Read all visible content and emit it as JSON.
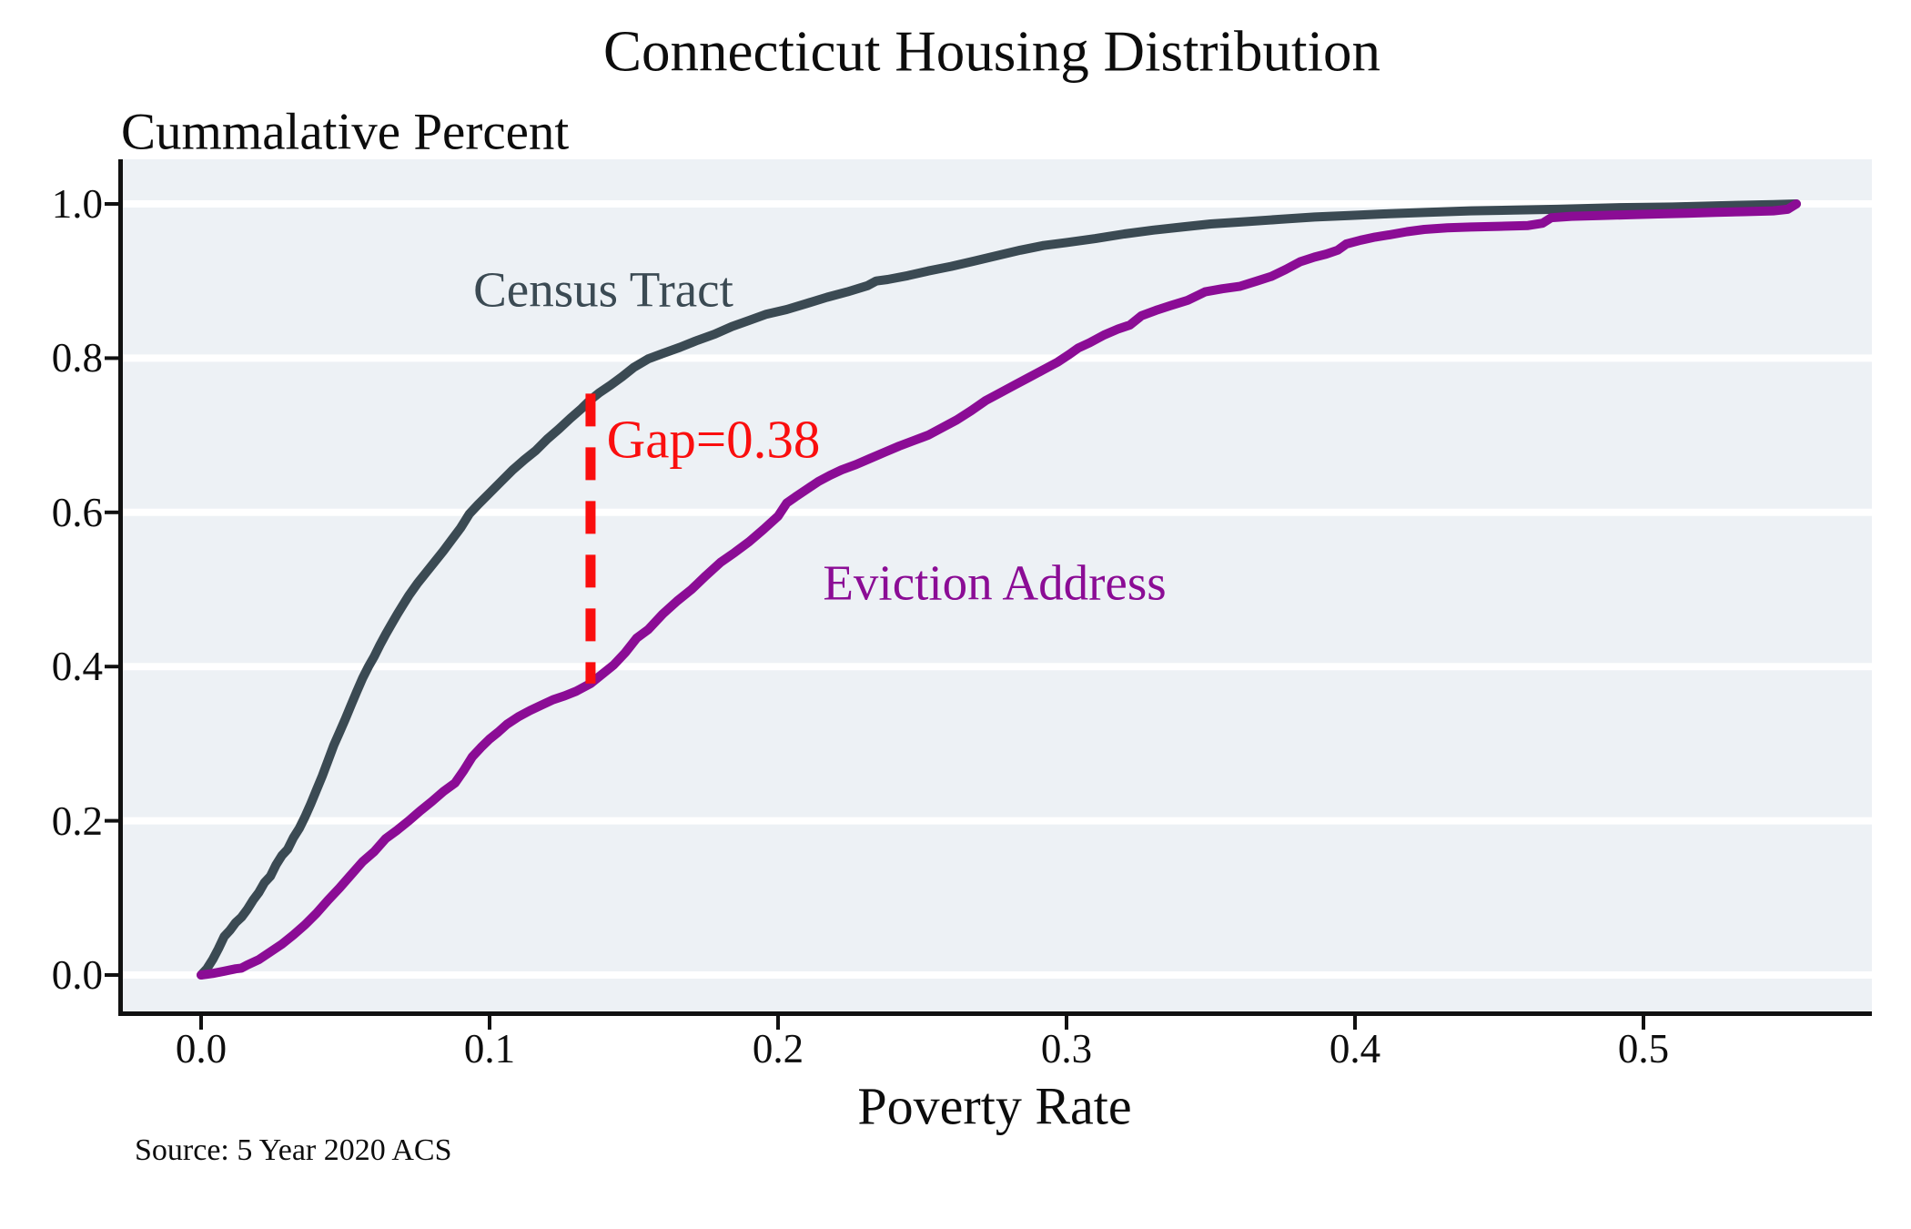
{
  "chart_data": {
    "type": "line",
    "title": "Connecticut Housing Distribution",
    "y_axis_title": "Cummalative Percent",
    "xlabel": "Poverty Rate",
    "ylabel": "Cummalative Percent",
    "source": "Source: 5 Year 2020 ACS",
    "plot_bg_color": "#edf1f5",
    "grid_color": "#ffffff",
    "axis_color": "#111111",
    "grid": "horizontal-only",
    "legend_position": "inline-labels-on-curves",
    "xlim": [
      -0.028,
      0.579
    ],
    "ylim": [
      -0.052,
      1.058
    ],
    "x_ticks": {
      "values": [
        0,
        0.1,
        0.2,
        0.3,
        0.4,
        0.5
      ],
      "labels": [
        "0.0",
        "0.1",
        "0.2",
        "0.3",
        "0.4",
        "0.5"
      ]
    },
    "y_ticks": {
      "values": [
        0,
        0.2,
        0.4,
        0.6,
        0.8,
        1.0
      ],
      "labels": [
        "0.0",
        "0.2",
        "0.4",
        "0.6",
        "0.8",
        "1.0"
      ]
    },
    "series": [
      {
        "name": "Census Tract",
        "color": "#3b4a53",
        "points": [
          [
            0,
            0
          ],
          [
            0.002,
            0.008
          ],
          [
            0.004,
            0.02
          ],
          [
            0.006,
            0.034
          ],
          [
            0.008,
            0.05
          ],
          [
            0.01,
            0.058
          ],
          [
            0.012,
            0.068
          ],
          [
            0.014,
            0.075
          ],
          [
            0.016,
            0.085
          ],
          [
            0.018,
            0.097
          ],
          [
            0.02,
            0.107
          ],
          [
            0.022,
            0.12
          ],
          [
            0.024,
            0.128
          ],
          [
            0.026,
            0.143
          ],
          [
            0.028,
            0.155
          ],
          [
            0.03,
            0.163
          ],
          [
            0.032,
            0.178
          ],
          [
            0.034,
            0.19
          ],
          [
            0.036,
            0.205
          ],
          [
            0.038,
            0.222
          ],
          [
            0.04,
            0.24
          ],
          [
            0.042,
            0.258
          ],
          [
            0.044,
            0.278
          ],
          [
            0.046,
            0.298
          ],
          [
            0.048,
            0.315
          ],
          [
            0.05,
            0.332
          ],
          [
            0.052,
            0.35
          ],
          [
            0.054,
            0.368
          ],
          [
            0.056,
            0.385
          ],
          [
            0.058,
            0.4
          ],
          [
            0.06,
            0.413
          ],
          [
            0.062,
            0.428
          ],
          [
            0.064,
            0.442
          ],
          [
            0.066,
            0.455
          ],
          [
            0.068,
            0.468
          ],
          [
            0.07,
            0.48
          ],
          [
            0.072,
            0.492
          ],
          [
            0.075,
            0.508
          ],
          [
            0.078,
            0.522
          ],
          [
            0.081,
            0.536
          ],
          [
            0.084,
            0.55
          ],
          [
            0.087,
            0.565
          ],
          [
            0.09,
            0.58
          ],
          [
            0.093,
            0.598
          ],
          [
            0.096,
            0.61
          ],
          [
            0.1,
            0.625
          ],
          [
            0.104,
            0.64
          ],
          [
            0.108,
            0.655
          ],
          [
            0.112,
            0.668
          ],
          [
            0.116,
            0.68
          ],
          [
            0.12,
            0.695
          ],
          [
            0.124,
            0.708
          ],
          [
            0.128,
            0.722
          ],
          [
            0.132,
            0.735
          ],
          [
            0.135,
            0.746
          ],
          [
            0.138,
            0.755
          ],
          [
            0.142,
            0.765
          ],
          [
            0.146,
            0.776
          ],
          [
            0.15,
            0.788
          ],
          [
            0.155,
            0.799
          ],
          [
            0.16,
            0.806
          ],
          [
            0.166,
            0.814
          ],
          [
            0.172,
            0.823
          ],
          [
            0.178,
            0.831
          ],
          [
            0.184,
            0.841
          ],
          [
            0.19,
            0.849
          ],
          [
            0.196,
            0.857
          ],
          [
            0.203,
            0.863
          ],
          [
            0.21,
            0.871
          ],
          [
            0.217,
            0.879
          ],
          [
            0.224,
            0.886
          ],
          [
            0.231,
            0.894
          ],
          [
            0.234,
            0.9
          ],
          [
            0.238,
            0.902
          ],
          [
            0.245,
            0.907
          ],
          [
            0.252,
            0.913
          ],
          [
            0.26,
            0.919
          ],
          [
            0.268,
            0.926
          ],
          [
            0.276,
            0.933
          ],
          [
            0.284,
            0.94
          ],
          [
            0.292,
            0.946
          ],
          [
            0.3,
            0.95
          ],
          [
            0.31,
            0.955
          ],
          [
            0.32,
            0.961
          ],
          [
            0.33,
            0.966
          ],
          [
            0.34,
            0.97
          ],
          [
            0.35,
            0.974
          ],
          [
            0.362,
            0.977
          ],
          [
            0.374,
            0.98
          ],
          [
            0.386,
            0.983
          ],
          [
            0.398,
            0.985
          ],
          [
            0.41,
            0.987
          ],
          [
            0.425,
            0.989
          ],
          [
            0.44,
            0.991
          ],
          [
            0.455,
            0.992
          ],
          [
            0.47,
            0.993
          ],
          [
            0.49,
            0.995
          ],
          [
            0.51,
            0.996
          ],
          [
            0.53,
            0.998
          ],
          [
            0.545,
            0.999
          ],
          [
            0.553,
            1
          ]
        ]
      },
      {
        "name": "Eviction Address",
        "color": "#8b0c95",
        "points": [
          [
            0,
            0
          ],
          [
            0.004,
            0.002
          ],
          [
            0.008,
            0.005
          ],
          [
            0.012,
            0.008
          ],
          [
            0.014,
            0.009
          ],
          [
            0.016,
            0.013
          ],
          [
            0.02,
            0.02
          ],
          [
            0.024,
            0.03
          ],
          [
            0.028,
            0.04
          ],
          [
            0.032,
            0.052
          ],
          [
            0.036,
            0.065
          ],
          [
            0.04,
            0.08
          ],
          [
            0.044,
            0.097
          ],
          [
            0.048,
            0.113
          ],
          [
            0.052,
            0.13
          ],
          [
            0.056,
            0.147
          ],
          [
            0.06,
            0.16
          ],
          [
            0.064,
            0.177
          ],
          [
            0.068,
            0.188
          ],
          [
            0.072,
            0.2
          ],
          [
            0.076,
            0.213
          ],
          [
            0.08,
            0.225
          ],
          [
            0.084,
            0.238
          ],
          [
            0.088,
            0.249
          ],
          [
            0.091,
            0.265
          ],
          [
            0.094,
            0.283
          ],
          [
            0.097,
            0.295
          ],
          [
            0.1,
            0.306
          ],
          [
            0.103,
            0.315
          ],
          [
            0.106,
            0.325
          ],
          [
            0.11,
            0.335
          ],
          [
            0.114,
            0.343
          ],
          [
            0.118,
            0.35
          ],
          [
            0.122,
            0.357
          ],
          [
            0.126,
            0.362
          ],
          [
            0.13,
            0.368
          ],
          [
            0.135,
            0.378
          ],
          [
            0.139,
            0.39
          ],
          [
            0.143,
            0.402
          ],
          [
            0.147,
            0.418
          ],
          [
            0.151,
            0.437
          ],
          [
            0.155,
            0.448
          ],
          [
            0.16,
            0.468
          ],
          [
            0.165,
            0.485
          ],
          [
            0.17,
            0.5
          ],
          [
            0.175,
            0.518
          ],
          [
            0.18,
            0.535
          ],
          [
            0.185,
            0.548
          ],
          [
            0.19,
            0.562
          ],
          [
            0.195,
            0.578
          ],
          [
            0.2,
            0.595
          ],
          [
            0.203,
            0.612
          ],
          [
            0.206,
            0.62
          ],
          [
            0.21,
            0.63
          ],
          [
            0.214,
            0.64
          ],
          [
            0.218,
            0.648
          ],
          [
            0.222,
            0.655
          ],
          [
            0.227,
            0.662
          ],
          [
            0.232,
            0.67
          ],
          [
            0.237,
            0.678
          ],
          [
            0.242,
            0.686
          ],
          [
            0.247,
            0.693
          ],
          [
            0.252,
            0.7
          ],
          [
            0.257,
            0.71
          ],
          [
            0.262,
            0.72
          ],
          [
            0.267,
            0.732
          ],
          [
            0.272,
            0.745
          ],
          [
            0.277,
            0.755
          ],
          [
            0.282,
            0.765
          ],
          [
            0.287,
            0.775
          ],
          [
            0.292,
            0.785
          ],
          [
            0.297,
            0.795
          ],
          [
            0.301,
            0.805
          ],
          [
            0.304,
            0.813
          ],
          [
            0.308,
            0.82
          ],
          [
            0.313,
            0.83
          ],
          [
            0.318,
            0.838
          ],
          [
            0.322,
            0.843
          ],
          [
            0.326,
            0.855
          ],
          [
            0.331,
            0.862
          ],
          [
            0.336,
            0.868
          ],
          [
            0.342,
            0.875
          ],
          [
            0.348,
            0.886
          ],
          [
            0.354,
            0.89
          ],
          [
            0.36,
            0.893
          ],
          [
            0.366,
            0.9
          ],
          [
            0.371,
            0.906
          ],
          [
            0.376,
            0.915
          ],
          [
            0.381,
            0.925
          ],
          [
            0.386,
            0.931
          ],
          [
            0.39,
            0.935
          ],
          [
            0.394,
            0.94
          ],
          [
            0.397,
            0.948
          ],
          [
            0.402,
            0.953
          ],
          [
            0.407,
            0.957
          ],
          [
            0.412,
            0.96
          ],
          [
            0.418,
            0.964
          ],
          [
            0.424,
            0.967
          ],
          [
            0.432,
            0.969
          ],
          [
            0.44,
            0.97
          ],
          [
            0.45,
            0.971
          ],
          [
            0.46,
            0.972
          ],
          [
            0.465,
            0.975
          ],
          [
            0.468,
            0.982
          ],
          [
            0.475,
            0.984
          ],
          [
            0.485,
            0.985
          ],
          [
            0.495,
            0.986
          ],
          [
            0.505,
            0.987
          ],
          [
            0.515,
            0.988
          ],
          [
            0.525,
            0.989
          ],
          [
            0.535,
            0.99
          ],
          [
            0.545,
            0.991
          ],
          [
            0.55,
            0.993
          ],
          [
            0.553,
            1
          ]
        ]
      }
    ],
    "annotation": {
      "label": "Gap=0.38",
      "color": "#fa0e0e",
      "x": 0.135,
      "v_top": 0.754,
      "v_bottom": 0.378,
      "style": "dashed-vertical-line"
    }
  }
}
